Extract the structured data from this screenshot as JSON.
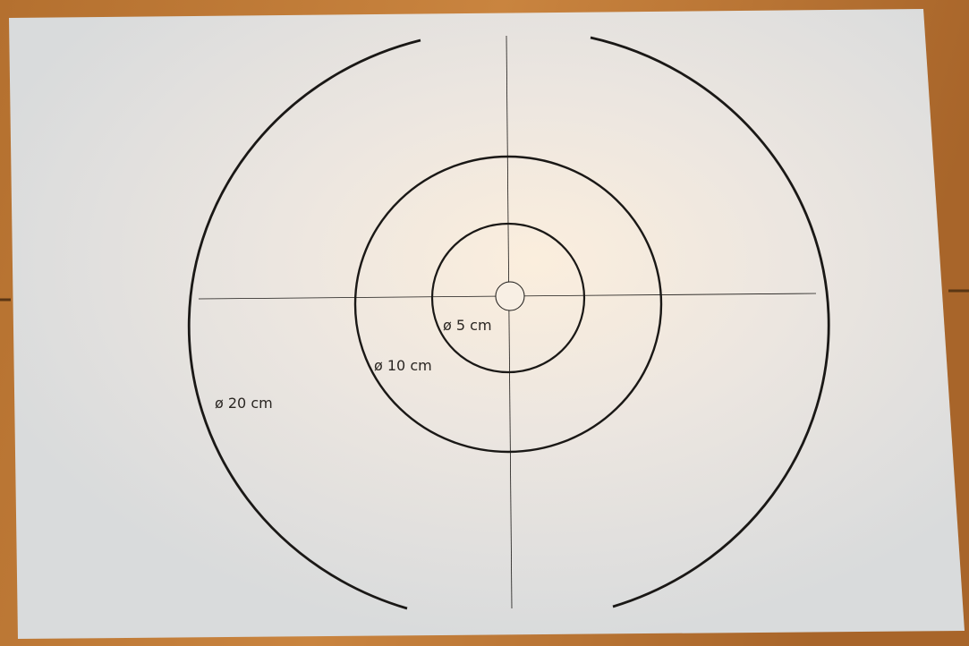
{
  "circles": [
    {
      "label": "ø 5 cm"
    },
    {
      "label": "ø 10 cm"
    },
    {
      "label": "ø 20 cm"
    }
  ]
}
